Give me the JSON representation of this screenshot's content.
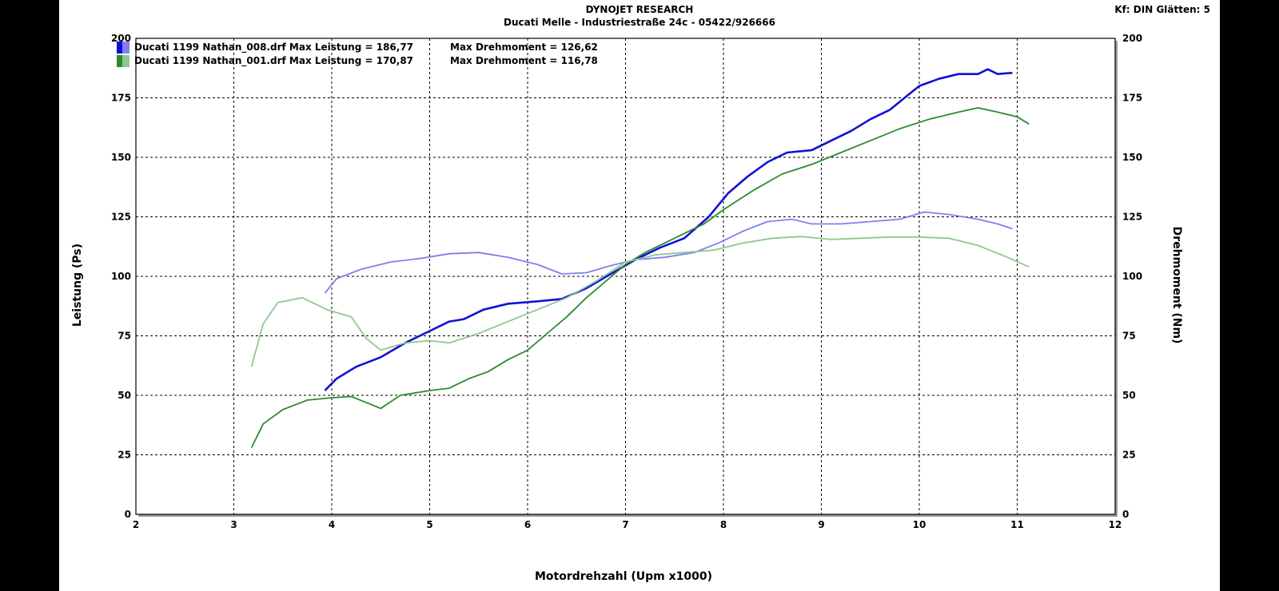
{
  "header": {
    "title": "DYNOJET RESEARCH",
    "subtitle": "Ducati Melle - Industriestraße 24c - 05422/926666",
    "corner": "Kf: DIN  Glätten: 5"
  },
  "legend": [
    {
      "file": "Ducati 1199 Nathan_008.drf",
      "power_label": "Max Leistung = 186,77",
      "torque_label": "Max Drehmoment = 126,62",
      "color_dark": "#1010d8",
      "color_light": "#8080ee"
    },
    {
      "file": "Ducati 1199 Nathan_001.drf",
      "power_label": "Max Leistung = 170,87",
      "torque_label": "Max Drehmoment = 116,78",
      "color_dark": "#2e8a2e",
      "color_light": "#90c890"
    }
  ],
  "chart_data": {
    "type": "line",
    "xlabel": "Motordrehzahl (Upm x1000)",
    "ylabel": "Leistung (Ps)",
    "y2label": "Drehmoment (Nm)",
    "xlim": [
      2,
      12
    ],
    "ylim": [
      0,
      200
    ],
    "y2lim": [
      0,
      200
    ],
    "x_ticks": [
      2,
      3,
      4,
      5,
      6,
      7,
      8,
      9,
      10,
      11,
      12
    ],
    "y_ticks": [
      0,
      25,
      50,
      75,
      100,
      125,
      150,
      175,
      200
    ],
    "grid": true,
    "legend_position": "top-left",
    "series": [
      {
        "name": "Ducati 1199 Nathan_008.drf",
        "quantity": "Leistung",
        "color": "#1010d8",
        "points": [
          [
            3.93,
            52
          ],
          [
            4.05,
            57
          ],
          [
            4.25,
            62
          ],
          [
            4.5,
            66
          ],
          [
            4.75,
            72
          ],
          [
            5.0,
            77
          ],
          [
            5.2,
            81
          ],
          [
            5.35,
            82
          ],
          [
            5.55,
            86
          ],
          [
            5.8,
            88.5
          ],
          [
            6.1,
            89.5
          ],
          [
            6.35,
            90.5
          ],
          [
            6.6,
            95
          ],
          [
            6.85,
            101
          ],
          [
            7.1,
            107
          ],
          [
            7.35,
            112
          ],
          [
            7.6,
            116
          ],
          [
            7.85,
            125
          ],
          [
            8.05,
            135
          ],
          [
            8.25,
            142
          ],
          [
            8.45,
            148
          ],
          [
            8.65,
            152
          ],
          [
            8.9,
            153
          ],
          [
            9.1,
            157
          ],
          [
            9.3,
            161
          ],
          [
            9.5,
            166
          ],
          [
            9.7,
            170
          ],
          [
            9.85,
            175
          ],
          [
            10.0,
            180
          ],
          [
            10.2,
            183
          ],
          [
            10.4,
            185
          ],
          [
            10.6,
            185
          ],
          [
            10.7,
            187
          ],
          [
            10.8,
            185
          ],
          [
            10.95,
            185.5
          ]
        ]
      },
      {
        "name": "Ducati 1199 Nathan_008.drf",
        "quantity": "Drehmoment",
        "color": "#8080ee",
        "points": [
          [
            3.93,
            93
          ],
          [
            4.05,
            99
          ],
          [
            4.3,
            103
          ],
          [
            4.6,
            106
          ],
          [
            4.9,
            107.5
          ],
          [
            5.2,
            109.5
          ],
          [
            5.5,
            110
          ],
          [
            5.8,
            108
          ],
          [
            6.1,
            105
          ],
          [
            6.35,
            101
          ],
          [
            6.6,
            101.5
          ],
          [
            6.85,
            104.5
          ],
          [
            7.1,
            107
          ],
          [
            7.4,
            108
          ],
          [
            7.7,
            110
          ],
          [
            7.95,
            114
          ],
          [
            8.2,
            119
          ],
          [
            8.45,
            123
          ],
          [
            8.7,
            124
          ],
          [
            8.9,
            122
          ],
          [
            9.2,
            122
          ],
          [
            9.5,
            123
          ],
          [
            9.8,
            124
          ],
          [
            10.05,
            127
          ],
          [
            10.3,
            126
          ],
          [
            10.6,
            124
          ],
          [
            10.8,
            122
          ],
          [
            10.95,
            120
          ]
        ]
      },
      {
        "name": "Ducati 1199 Nathan_001.drf",
        "quantity": "Leistung",
        "color": "#2e8a2e",
        "points": [
          [
            3.18,
            28
          ],
          [
            3.3,
            38
          ],
          [
            3.5,
            44
          ],
          [
            3.75,
            48
          ],
          [
            4.0,
            49
          ],
          [
            4.2,
            49.5
          ],
          [
            4.35,
            47
          ],
          [
            4.5,
            44.5
          ],
          [
            4.7,
            50
          ],
          [
            5.0,
            52
          ],
          [
            5.2,
            53
          ],
          [
            5.4,
            57
          ],
          [
            5.6,
            60
          ],
          [
            5.8,
            65
          ],
          [
            6.0,
            69
          ],
          [
            6.2,
            76
          ],
          [
            6.4,
            83
          ],
          [
            6.6,
            91
          ],
          [
            6.8,
            98
          ],
          [
            7.0,
            105
          ],
          [
            7.2,
            110
          ],
          [
            7.5,
            116
          ],
          [
            7.8,
            122
          ],
          [
            8.0,
            128
          ],
          [
            8.3,
            136
          ],
          [
            8.6,
            143
          ],
          [
            8.9,
            147
          ],
          [
            9.2,
            152
          ],
          [
            9.5,
            157
          ],
          [
            9.8,
            162
          ],
          [
            10.1,
            166
          ],
          [
            10.4,
            169
          ],
          [
            10.6,
            170.8
          ],
          [
            10.8,
            169
          ],
          [
            11.0,
            167
          ],
          [
            11.12,
            164
          ]
        ]
      },
      {
        "name": "Ducati 1199 Nathan_001.drf",
        "quantity": "Drehmoment",
        "color": "#90c890",
        "points": [
          [
            3.18,
            62
          ],
          [
            3.3,
            80
          ],
          [
            3.45,
            89
          ],
          [
            3.7,
            91
          ],
          [
            3.95,
            86
          ],
          [
            4.2,
            83
          ],
          [
            4.35,
            74
          ],
          [
            4.5,
            69
          ],
          [
            4.75,
            72
          ],
          [
            5.0,
            73
          ],
          [
            5.2,
            72
          ],
          [
            5.5,
            76
          ],
          [
            5.8,
            81
          ],
          [
            6.1,
            86
          ],
          [
            6.4,
            91
          ],
          [
            6.7,
            98
          ],
          [
            7.0,
            106
          ],
          [
            7.3,
            109
          ],
          [
            7.6,
            110
          ],
          [
            7.9,
            111
          ],
          [
            8.2,
            114
          ],
          [
            8.5,
            116
          ],
          [
            8.8,
            116.7
          ],
          [
            9.1,
            115.5
          ],
          [
            9.4,
            116
          ],
          [
            9.7,
            116.5
          ],
          [
            10.0,
            116.5
          ],
          [
            10.3,
            116
          ],
          [
            10.6,
            113
          ],
          [
            10.9,
            108
          ],
          [
            11.12,
            104
          ]
        ]
      }
    ]
  }
}
